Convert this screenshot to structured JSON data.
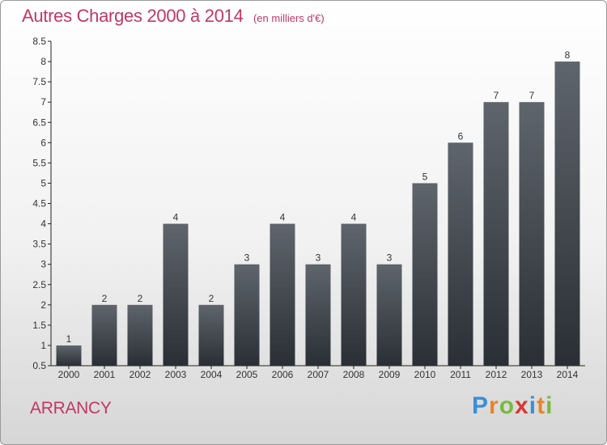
{
  "header": {
    "title": "Autres Charges 2000 à 2014",
    "subtitle": "(en milliers d'€)"
  },
  "commune": "ARRANCY",
  "brand": {
    "letters": [
      {
        "char": "P",
        "color": "#3a8fd6"
      },
      {
        "char": "r",
        "color": "#e8852b"
      },
      {
        "char": "o",
        "color": "#7ab93e"
      },
      {
        "char": "x",
        "color": "#d8372e"
      },
      {
        "char": "i",
        "color": "#3a8fd6"
      },
      {
        "char": "t",
        "color": "#e8852b"
      },
      {
        "char": "i",
        "color": "#7ab93e"
      }
    ]
  },
  "chart_data": {
    "type": "bar",
    "title": "Autres Charges 2000 à 2014",
    "subtitle": "(en milliers d'€)",
    "categories": [
      "2000",
      "2001",
      "2002",
      "2003",
      "2004",
      "2005",
      "2006",
      "2007",
      "2008",
      "2009",
      "2010",
      "2011",
      "2012",
      "2013",
      "2014"
    ],
    "values": [
      1,
      2,
      2,
      4,
      2,
      3,
      4,
      3,
      4,
      3,
      5,
      6,
      7,
      7,
      8
    ],
    "data_labels": [
      "1",
      "2",
      "2",
      "4",
      "2",
      "3",
      "4",
      "3",
      "4",
      "3",
      "5",
      "6",
      "7",
      "7",
      "8"
    ],
    "ylim": [
      0.5,
      8.5
    ],
    "yticks": [
      0.5,
      1,
      1.5,
      2,
      2.5,
      3,
      3.5,
      4,
      4.5,
      5,
      5.5,
      6,
      6.5,
      7,
      7.5,
      8,
      8.5
    ],
    "ytick_labels": [
      "0.5",
      "1",
      "1.5",
      "2",
      "2.5",
      "3",
      "3.5",
      "4",
      "4.5",
      "5",
      "5.5",
      "6",
      "6.5",
      "7",
      "7.5",
      "8",
      "8.5"
    ],
    "grid": false,
    "colors": {
      "bar_top": "#5f656c",
      "bar_bottom": "#2a2f35",
      "axis": "#222222",
      "text": "#333333"
    }
  }
}
